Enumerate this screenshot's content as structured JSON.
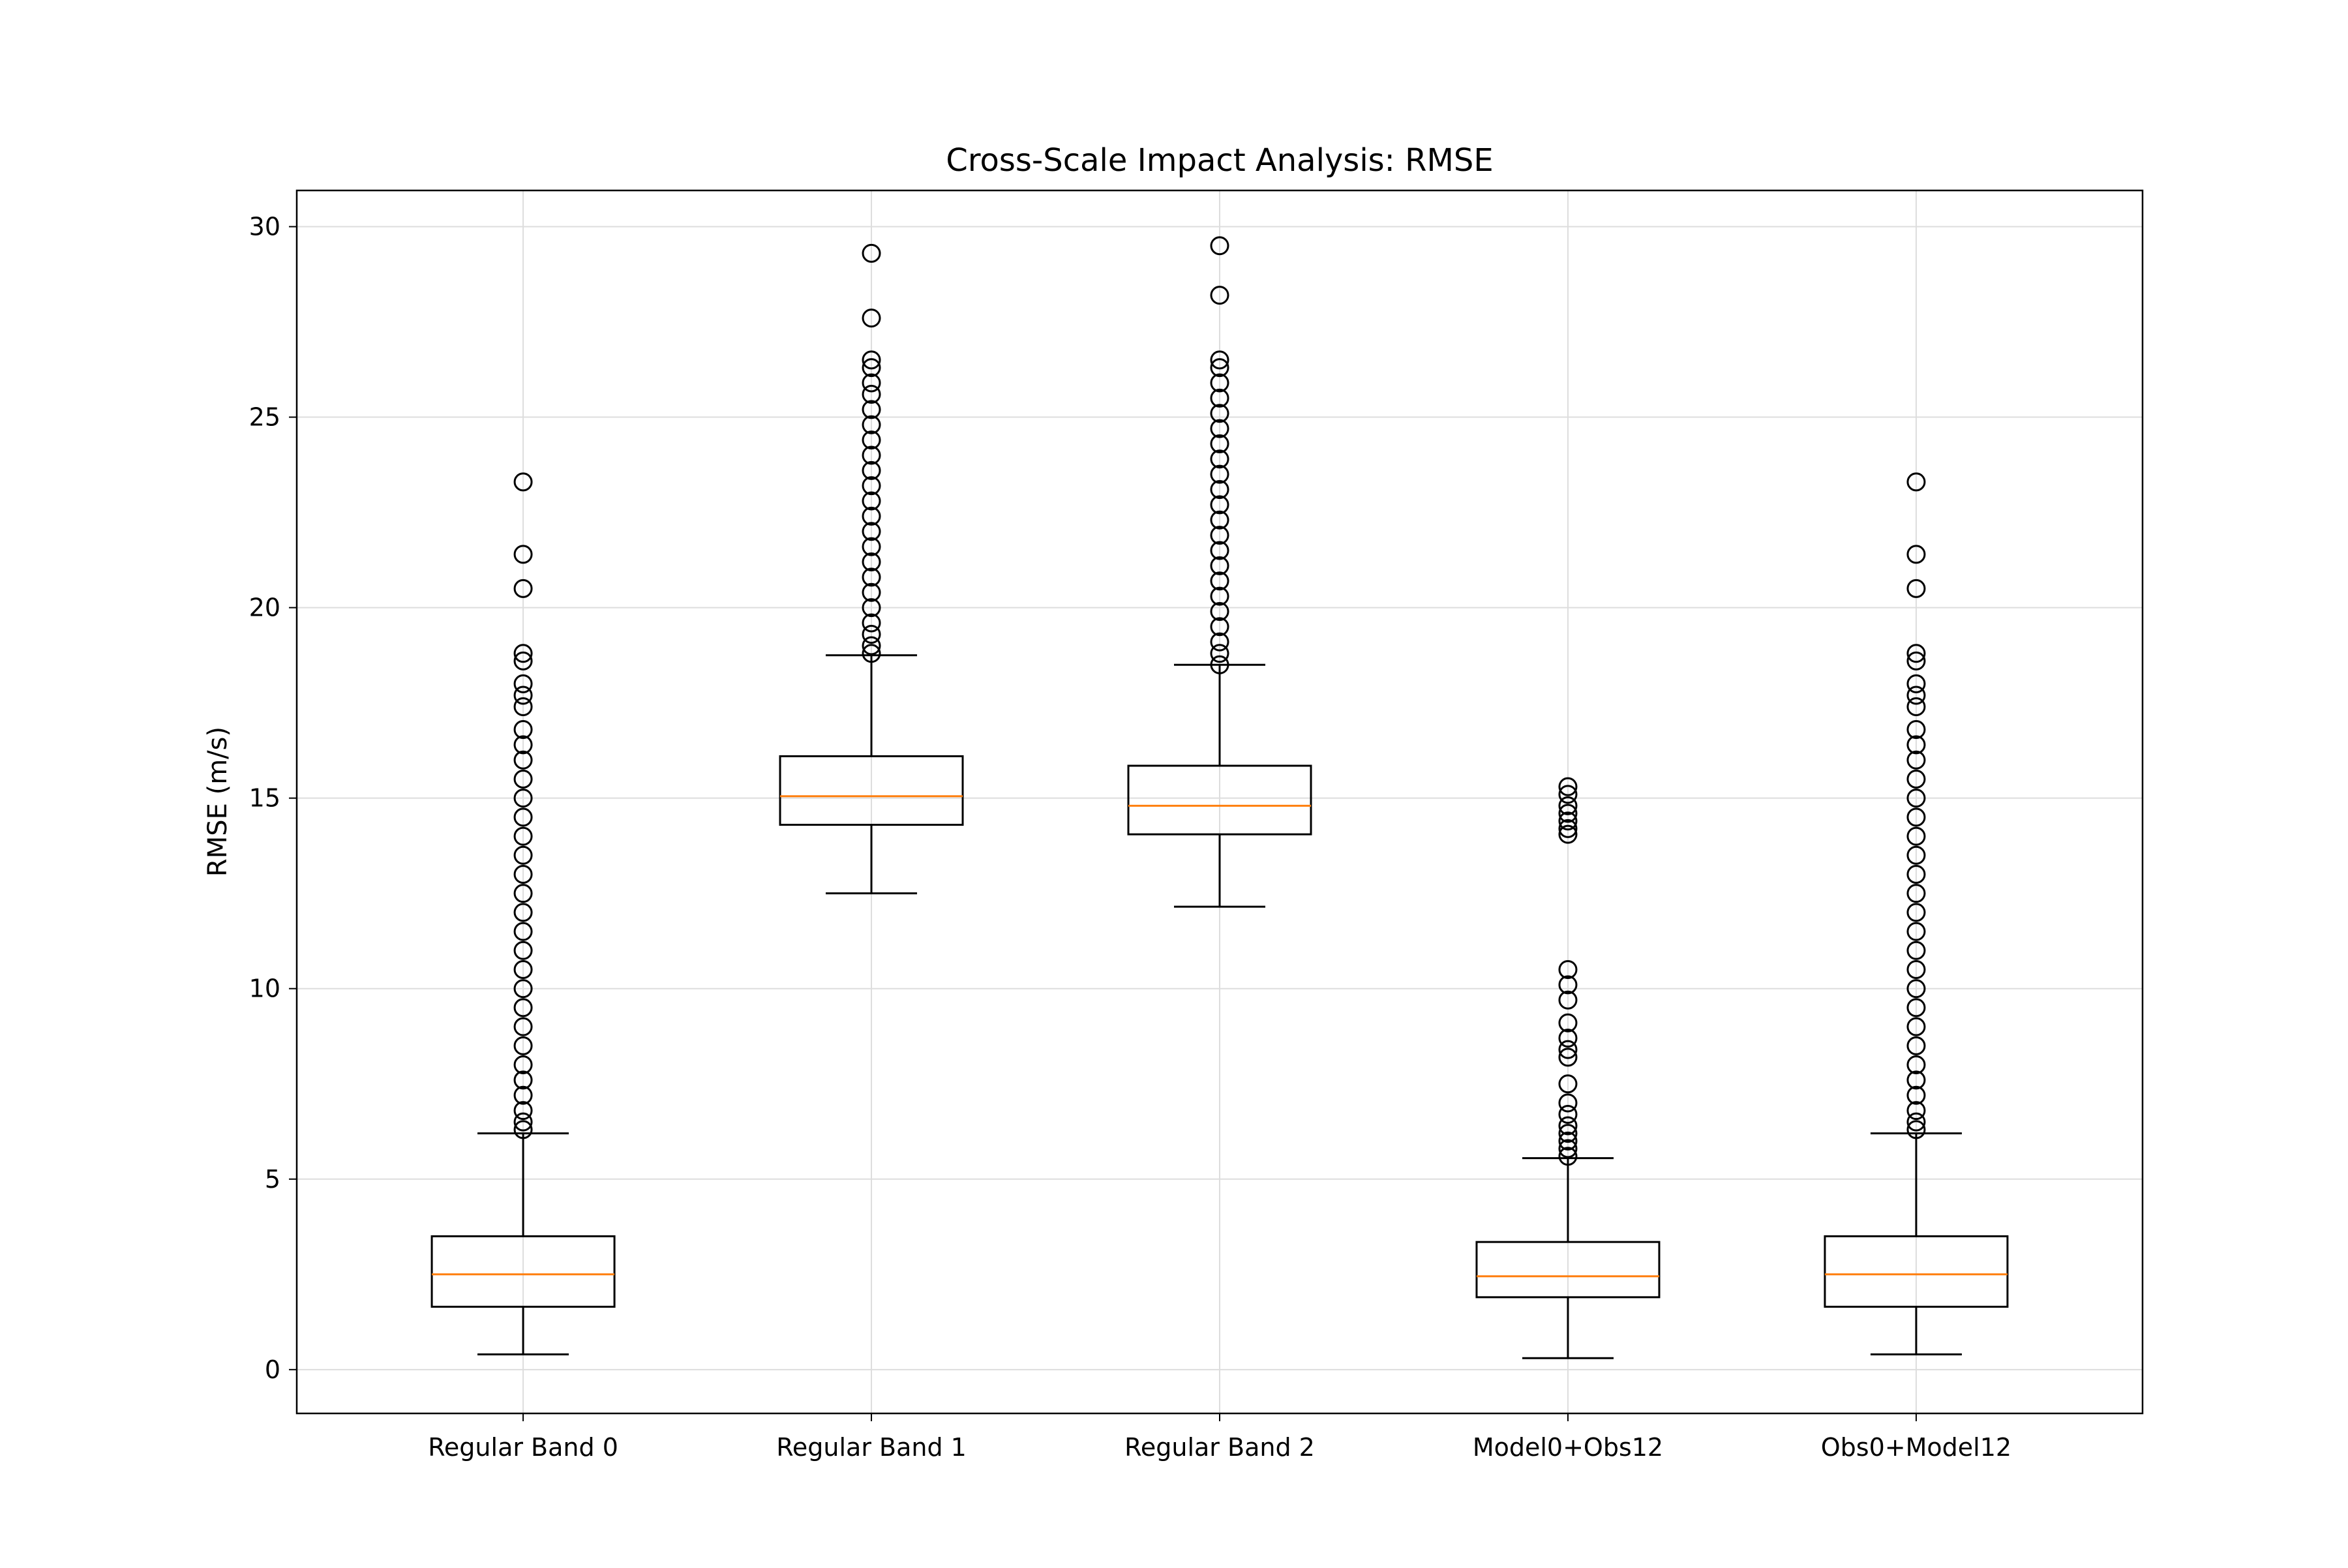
{
  "chart_data": {
    "type": "boxplot",
    "title": "Cross-Scale Impact Analysis: RMSE",
    "xlabel": "",
    "ylabel": "RMSE (m/s)",
    "ylim": [
      -1.15,
      30.95
    ],
    "yticks": [
      0,
      5,
      10,
      15,
      20,
      25,
      30
    ],
    "grid": true,
    "categories": [
      "Regular Band 0",
      "Regular Band 1",
      "Regular Band 2",
      "Model0+Obs12",
      "Obs0+Model12"
    ],
    "boxes": [
      {
        "category": "Regular Band 0",
        "whisker_low": 0.4,
        "q1": 1.65,
        "median": 2.5,
        "q3": 3.5,
        "whisker_high": 6.2,
        "fliers": [
          6.3,
          6.5,
          6.8,
          7.2,
          7.6,
          8.0,
          8.5,
          9.0,
          9.5,
          10.0,
          10.5,
          11.0,
          11.5,
          12.0,
          12.5,
          13.0,
          13.5,
          14.0,
          14.5,
          15.0,
          15.5,
          16.0,
          16.4,
          16.8,
          17.4,
          17.7,
          18.0,
          18.6,
          18.8,
          20.5,
          21.4,
          23.3
        ]
      },
      {
        "category": "Regular Band 1",
        "whisker_low": 12.5,
        "q1": 14.3,
        "median": 15.05,
        "q3": 16.1,
        "whisker_high": 18.75,
        "fliers": [
          18.8,
          19.0,
          19.3,
          19.6,
          20.0,
          20.4,
          20.8,
          21.2,
          21.6,
          22.0,
          22.4,
          22.8,
          23.2,
          23.6,
          24.0,
          24.4,
          24.8,
          25.2,
          25.6,
          25.9,
          26.3,
          26.5,
          27.6,
          29.3
        ]
      },
      {
        "category": "Regular Band 2",
        "whisker_low": 12.15,
        "q1": 14.05,
        "median": 14.8,
        "q3": 15.85,
        "whisker_high": 18.5,
        "fliers": [
          18.5,
          18.8,
          19.1,
          19.5,
          19.9,
          20.3,
          20.7,
          21.1,
          21.5,
          21.9,
          22.3,
          22.7,
          23.1,
          23.5,
          23.9,
          24.3,
          24.7,
          25.1,
          25.5,
          25.9,
          26.3,
          26.5,
          28.2,
          29.5
        ]
      },
      {
        "category": "Model0+Obs12",
        "whisker_low": 0.3,
        "q1": 1.9,
        "median": 2.45,
        "q3": 3.35,
        "whisker_high": 5.55,
        "fliers": [
          5.6,
          5.8,
          6.0,
          6.2,
          6.4,
          6.7,
          7.0,
          7.5,
          8.2,
          8.4,
          8.7,
          9.1,
          9.7,
          10.1,
          10.5,
          14.05,
          14.2,
          14.4,
          14.6,
          14.8,
          15.1,
          15.3
        ]
      },
      {
        "category": "Obs0+Model12",
        "whisker_low": 0.4,
        "q1": 1.65,
        "median": 2.5,
        "q3": 3.5,
        "whisker_high": 6.2,
        "fliers": [
          6.3,
          6.5,
          6.8,
          7.2,
          7.6,
          8.0,
          8.5,
          9.0,
          9.5,
          10.0,
          10.5,
          11.0,
          11.5,
          12.0,
          12.5,
          13.0,
          13.5,
          14.0,
          14.5,
          15.0,
          15.5,
          16.0,
          16.4,
          16.8,
          17.4,
          17.7,
          18.0,
          18.6,
          18.8,
          20.5,
          21.4,
          23.3
        ]
      }
    ],
    "colors": {
      "box": "#000000",
      "median": "#ff7f0e",
      "grid": "#dddddd",
      "flier_edge": "#000000"
    }
  }
}
